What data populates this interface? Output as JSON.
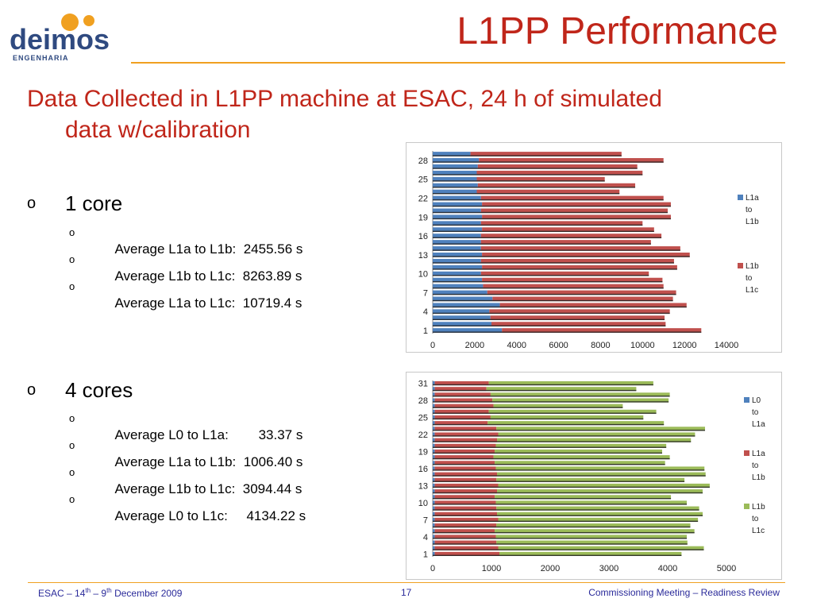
{
  "logo": {
    "text": "deimos",
    "sub": "ENGENHARIA"
  },
  "title": "L1PP Performance",
  "subtitle_line1": "Data Collected in L1PP machine at ESAC, 24 h of simulated",
  "subtitle_line2": "data w/calibration",
  "sections": [
    {
      "heading": "1 core",
      "items": [
        "Average L1a to L1b:  2455.56 s",
        "Average L1b to L1c:  8263.89 s",
        "Average L1a to L1c:  10719.4 s"
      ]
    },
    {
      "heading": "4 cores",
      "items": [
        "Average L0 to L1a:        33.37 s",
        "Average L1a to L1b:  1006.40 s",
        "Average L1b to L1c:  3094.44 s",
        "Average L0 to L1c:     4134.22 s"
      ]
    }
  ],
  "bullet_l1": "o",
  "bullet_l2": "o",
  "footer": {
    "left_pre": "ESAC – 14",
    "left_sup1": "th",
    "left_mid": " – 9",
    "left_sup2": "th",
    "left_post": " December 2009",
    "page": "17",
    "right": "Commissioning Meeting – Readiness Review"
  },
  "colors": {
    "accent": "#c0261a",
    "rule": "#f0a020",
    "blue": "#4f81bd",
    "red": "#c0504d",
    "green": "#9bbb59",
    "footer": "#2a2a9a"
  },
  "chart_data": [
    {
      "type": "bar",
      "orientation": "horizontal",
      "stacked": true,
      "categories": [
        "1",
        "2",
        "3",
        "4",
        "5",
        "6",
        "7",
        "8",
        "9",
        "10",
        "11",
        "12",
        "13",
        "14",
        "15",
        "16",
        "17",
        "18",
        "19",
        "20",
        "21",
        "22",
        "23",
        "24",
        "25",
        "26",
        "27",
        "28",
        "29"
      ],
      "tick_labels": [
        "1",
        "4",
        "7",
        "10",
        "13",
        "16",
        "19",
        "22",
        "25",
        "28"
      ],
      "series": [
        {
          "name": "L1a to L1b",
          "color": "#4f81bd",
          "values": [
            3300,
            2800,
            2750,
            2700,
            3200,
            2850,
            2600,
            2400,
            2350,
            2300,
            2350,
            2300,
            2350,
            2300,
            2300,
            2300,
            2350,
            2300,
            2350,
            2300,
            2350,
            2300,
            2100,
            2150,
            2100,
            2100,
            2150,
            2200,
            1800
          ]
        },
        {
          "name": "L1b to L1c",
          "color": "#c0504d",
          "values": [
            9500,
            8300,
            8300,
            8600,
            8900,
            8600,
            9000,
            8600,
            8600,
            8000,
            9300,
            9200,
            9900,
            9500,
            8100,
            8600,
            8200,
            7700,
            9000,
            8900,
            9000,
            8700,
            6800,
            7500,
            6100,
            7900,
            7600,
            8800,
            7200
          ]
        }
      ],
      "xlim": [
        0,
        14000
      ],
      "xticks": [
        0,
        2000,
        4000,
        6000,
        8000,
        10000,
        12000,
        14000
      ],
      "legend": "right"
    },
    {
      "type": "bar",
      "orientation": "horizontal",
      "stacked": true,
      "categories": [
        "1",
        "2",
        "3",
        "4",
        "5",
        "6",
        "7",
        "8",
        "9",
        "10",
        "11",
        "12",
        "13",
        "14",
        "15",
        "16",
        "17",
        "18",
        "19",
        "20",
        "21",
        "22",
        "23",
        "24",
        "25",
        "26",
        "27",
        "28",
        "29",
        "30",
        "31"
      ],
      "tick_labels": [
        "1",
        "4",
        "7",
        "10",
        "13",
        "16",
        "19",
        "22",
        "25",
        "28",
        "31"
      ],
      "series": [
        {
          "name": "L0 to L1a",
          "color": "#4f81bd",
          "values": [
            35,
            35,
            35,
            35,
            35,
            35,
            35,
            35,
            35,
            35,
            35,
            35,
            35,
            35,
            35,
            35,
            35,
            35,
            35,
            35,
            35,
            35,
            35,
            35,
            35,
            35,
            35,
            35,
            35,
            35,
            35
          ]
        },
        {
          "name": "L1a to L1b",
          "color": "#c0504d",
          "values": [
            1100,
            1080,
            1050,
            1040,
            1020,
            1050,
            1080,
            1060,
            1050,
            1040,
            1020,
            1060,
            1080,
            1050,
            1060,
            1040,
            1020,
            1000,
            1020,
            1040,
            1060,
            1080,
            1050,
            900,
            950,
            920,
            1000,
            980,
            950,
            880,
            920
          ]
        },
        {
          "name": "L1b to L1c",
          "color": "#9bbb59",
          "values": [
            3100,
            3500,
            3250,
            3250,
            3400,
            3300,
            3400,
            3500,
            3450,
            3250,
            3000,
            3500,
            3600,
            3200,
            3550,
            3550,
            2900,
            3000,
            2850,
            2900,
            3300,
            3350,
            3550,
            3000,
            2600,
            2850,
            2200,
            3000,
            3050,
            2550,
            2800
          ]
        }
      ],
      "xlim": [
        0,
        5000
      ],
      "xticks": [
        0,
        1000,
        2000,
        3000,
        4000,
        5000
      ],
      "legend": "right"
    }
  ]
}
